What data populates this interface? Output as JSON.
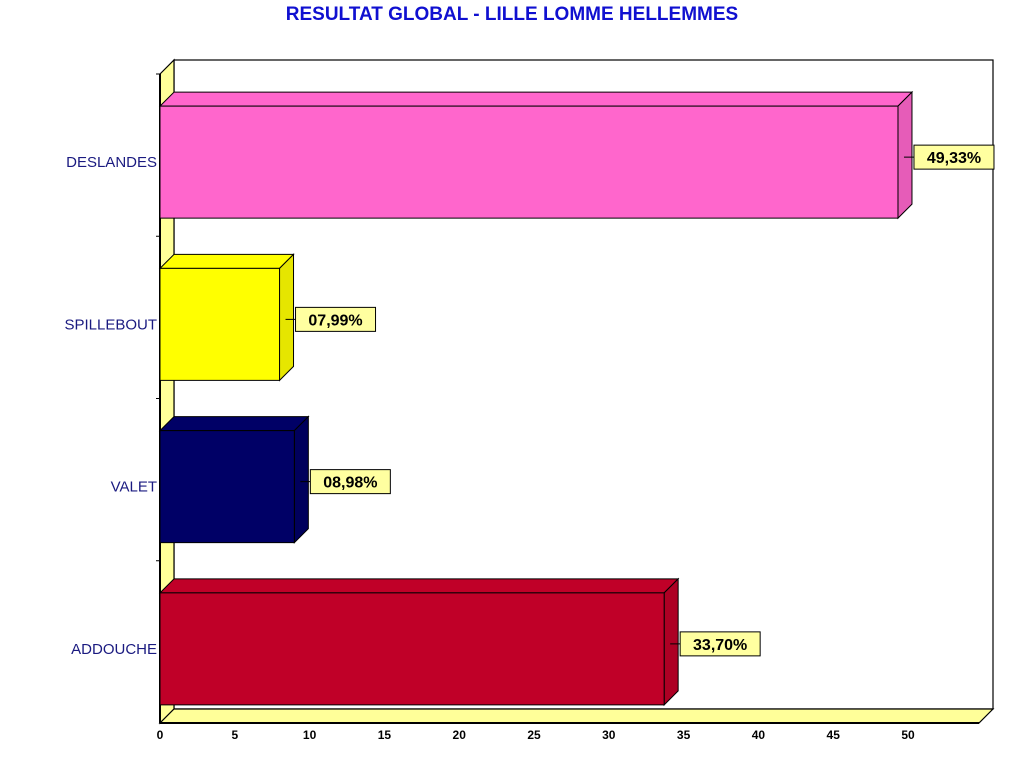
{
  "chart_data": {
    "type": "bar",
    "orientation": "horizontal",
    "style": "3d",
    "title": "RESULTAT GLOBAL - LILLE LOMME HELLEMMES",
    "categories": [
      "DESLANDES",
      "SPILLEBOUT",
      "VALET",
      "ADDOUCHE"
    ],
    "values": [
      49.33,
      7.99,
      8.98,
      33.7
    ],
    "data_labels": [
      "49,33%",
      "07,99%",
      "08,98%",
      "33,70%"
    ],
    "colors": [
      "#ff66cc",
      "#ffff00",
      "#000066",
      "#c00028"
    ],
    "xlim": [
      0,
      55
    ],
    "x_ticks": [
      0,
      5,
      10,
      15,
      20,
      25,
      30,
      35,
      40,
      45,
      50
    ],
    "xlabel": "",
    "ylabel": "",
    "grid": false,
    "legend": "none",
    "wall_color": "#ffff99",
    "label_box_color": "#ffffa0"
  }
}
